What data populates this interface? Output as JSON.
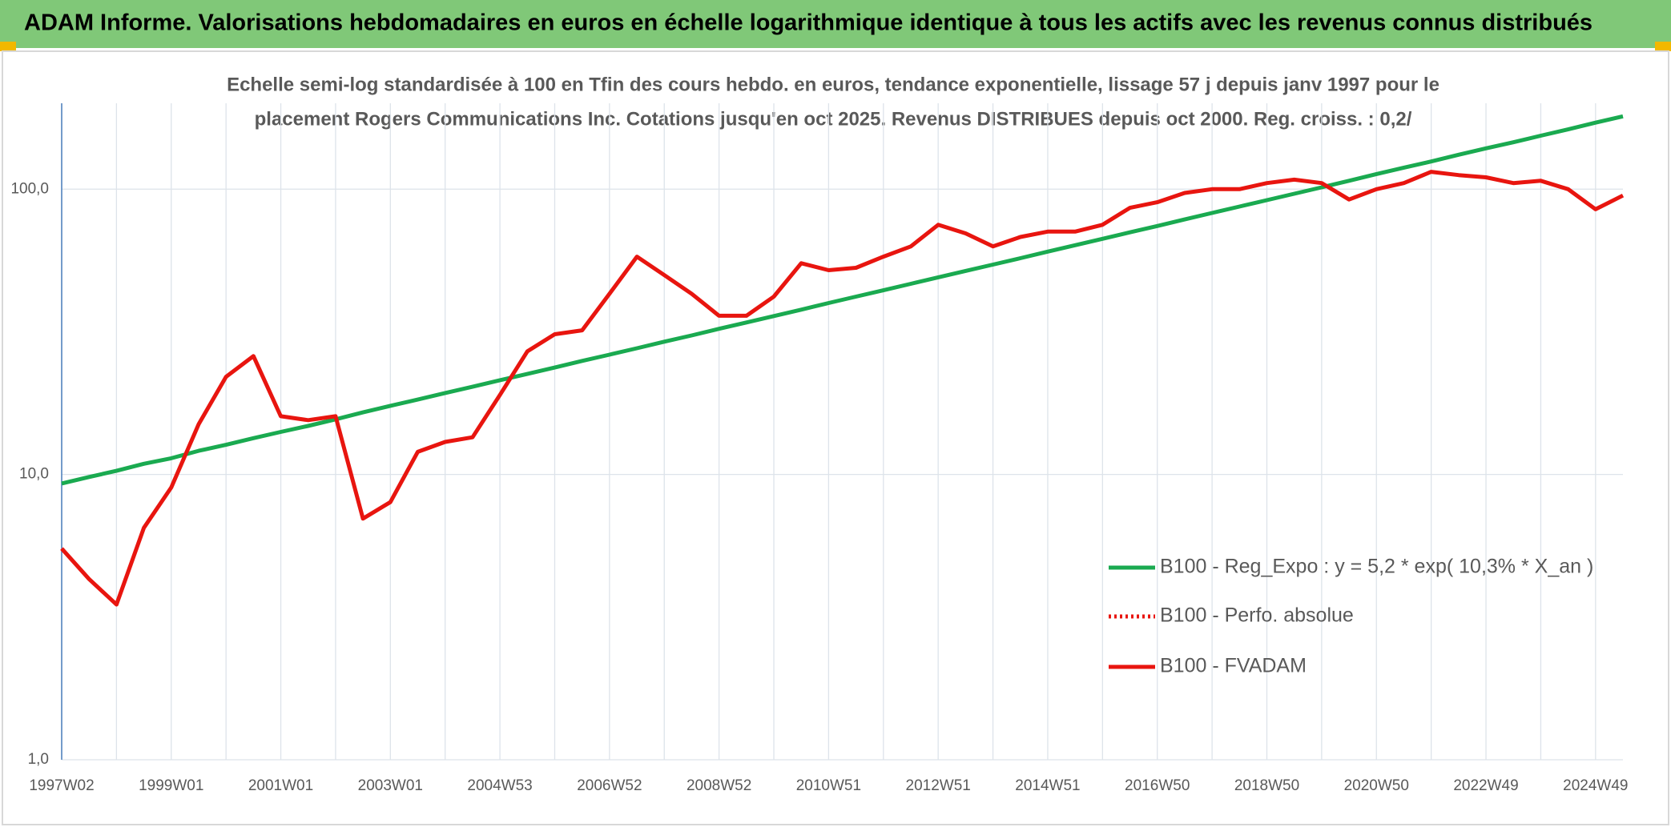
{
  "header": {
    "title": "ADAM Informe. Valorisations hebdomadaires en euros en échelle logarithmique identique à tous les actifs avec les revenus connus distribués"
  },
  "chart_data": {
    "type": "line",
    "title": "Echelle semi-log standardisée à 100 en Tfin des cours hebdo. en euros, tendance exponentielle, lissage 57 j depuis janv 1997 pour le",
    "subtitle": "placement Rogers Communications Inc. Cotations jusqu'en oct 2025. Revenus DISTRIBUES depuis oct 2000. Reg. croiss. : 0,2/",
    "log_y": true,
    "grid": true,
    "legend": "right",
    "ylim": [
      1,
      200
    ],
    "yticks": [
      {
        "value": 1,
        "label": "1,0"
      },
      {
        "value": 10,
        "label": "10,0"
      },
      {
        "value": 100,
        "label": "100,0"
      }
    ],
    "categories": [
      "1997W02",
      null,
      null,
      null,
      "1999W01",
      null,
      null,
      null,
      "2001W01",
      null,
      null,
      null,
      "2003W01",
      null,
      null,
      null,
      "2004W53",
      null,
      null,
      null,
      "2006W52",
      null,
      null,
      null,
      "2008W52",
      null,
      null,
      null,
      "2010W51",
      null,
      null,
      null,
      "2012W51",
      null,
      null,
      null,
      "2014W51",
      null,
      null,
      null,
      "2016W50",
      null,
      null,
      null,
      "2018W50",
      null,
      null,
      null,
      "2020W50",
      null,
      null,
      null,
      "2022W49",
      null,
      null,
      null,
      "2024W49",
      null
    ],
    "series": [
      {
        "name": "B100 - Reg_Expo : y = 5,2 * exp( 10,3% *  X_an )",
        "color": "#1aaa50",
        "dash": false,
        "values": [
          9.3,
          9.8,
          10.3,
          10.9,
          11.4,
          12.1,
          12.7,
          13.4,
          14.1,
          14.8,
          15.6,
          16.5,
          17.4,
          18.3,
          19.3,
          20.3,
          21.4,
          22.5,
          23.7,
          25.0,
          26.3,
          27.7,
          29.2,
          30.7,
          32.4,
          34.1,
          35.9,
          37.8,
          39.9,
          42.0,
          44.2,
          46.6,
          49.1,
          51.7,
          54.4,
          57.3,
          60.4,
          63.6,
          67.0,
          70.6,
          74.3,
          78.3,
          82.5,
          86.9,
          91.5,
          96.4,
          101.5,
          107,
          113,
          119,
          125,
          132,
          139,
          146,
          154,
          162,
          171,
          180
        ]
      },
      {
        "name": "B100 - Perfo. absolue",
        "color": "#e8150f",
        "dash": true,
        "values": [
          null,
          null,
          null,
          null,
          null,
          null,
          null,
          null,
          null,
          null,
          null,
          null,
          null,
          null,
          null,
          null,
          null,
          null,
          null,
          null,
          null,
          null,
          null,
          null,
          null,
          null,
          null,
          null,
          null,
          null,
          null,
          null,
          null,
          null,
          null,
          null,
          null,
          null,
          null,
          null,
          null,
          null,
          null,
          null,
          null,
          null,
          null,
          null,
          null,
          null,
          null,
          null,
          null,
          null,
          null,
          null,
          null,
          null
        ]
      },
      {
        "name": "B100 - FVADAM",
        "color": "#e8150f",
        "dash": false,
        "values": [
          5.5,
          4.3,
          3.5,
          6.5,
          9,
          15,
          22,
          26,
          16,
          15.5,
          16,
          7,
          8,
          12,
          13,
          13.5,
          19,
          27,
          31,
          32,
          43,
          58,
          50,
          43,
          36,
          36,
          42,
          55,
          52,
          53,
          58,
          63,
          75,
          70,
          63,
          68,
          71,
          71,
          75,
          86,
          90,
          97,
          100,
          100,
          105,
          108,
          105,
          92,
          100,
          105,
          115,
          112,
          110,
          105,
          107,
          100,
          85,
          95
        ]
      }
    ]
  }
}
